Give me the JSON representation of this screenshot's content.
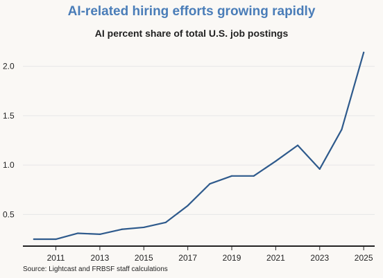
{
  "chart_data": {
    "type": "line",
    "title": "AI-related hiring efforts growing rapidly",
    "subtitle": "AI percent share of total U.S. job postings",
    "source": "Source: Lightcast and FRBSF staff calculations",
    "xlabel": "",
    "ylabel": "",
    "x": [
      2010,
      2011,
      2012,
      2013,
      2014,
      2015,
      2016,
      2017,
      2018,
      2019,
      2020,
      2021,
      2022,
      2023,
      2024,
      2025
    ],
    "values": [
      0.25,
      0.25,
      0.31,
      0.3,
      0.35,
      0.37,
      0.42,
      0.59,
      0.81,
      0.89,
      0.89,
      1.04,
      1.2,
      0.96,
      1.36,
      2.14
    ],
    "xlim": [
      2009.5,
      2025.5
    ],
    "ylim": [
      0.18,
      2.25
    ],
    "x_ticks": [
      2011,
      2013,
      2015,
      2017,
      2019,
      2021,
      2023,
      2025
    ],
    "x_tick_labels": [
      "2011",
      "2013",
      "2015",
      "2017",
      "2019",
      "2021",
      "2023",
      "2025"
    ],
    "y_ticks": [
      0.5,
      1.0,
      1.5,
      2.0
    ],
    "y_tick_labels": [
      "0.5",
      "1.0",
      "1.5",
      "2.0"
    ],
    "grid": true,
    "colors": {
      "line": "#2e5a8c",
      "title": "#4a7db8",
      "grid": "#e6e6e6",
      "axis": "#222222"
    }
  }
}
